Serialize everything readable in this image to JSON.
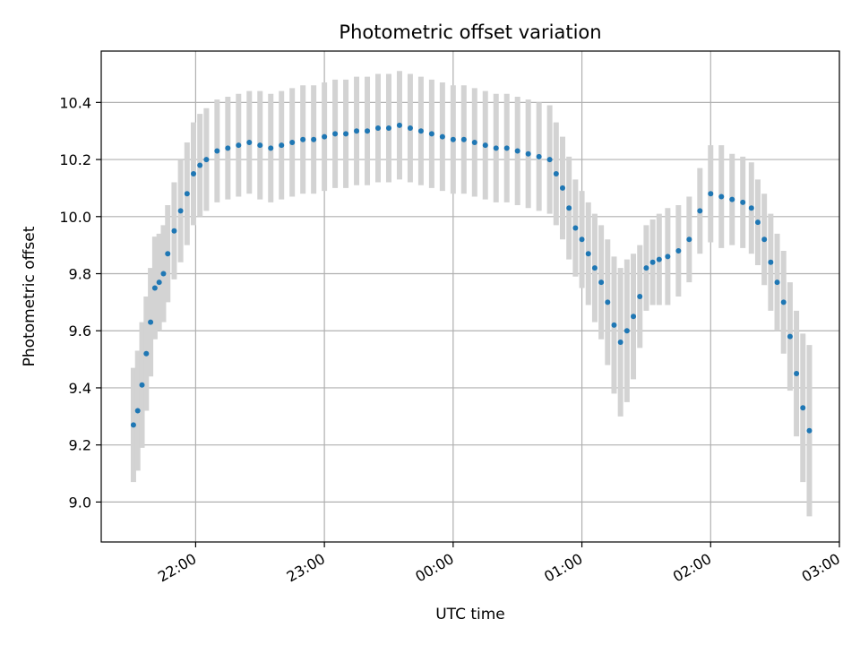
{
  "chart_data": {
    "type": "scatter",
    "title": "Photometric offset variation",
    "xlabel": "UTC time",
    "ylabel": "Photometric offset",
    "x_ticks": [
      "22:00",
      "23:00",
      "00:00",
      "01:00",
      "02:00",
      "03:00"
    ],
    "x_range": [
      "21:16",
      "03:00"
    ],
    "y_ticks": [
      "9.0",
      "9.2",
      "9.4",
      "9.6",
      "9.8",
      "10.0",
      "10.2",
      "10.4"
    ],
    "ylim": [
      8.86,
      10.58
    ],
    "grid": true,
    "colors": {
      "points": "#1f77b4",
      "error_bars": "#d3d3d3",
      "grid": "#b0b0b0"
    },
    "series": [
      {
        "x": [
          "21:31",
          "21:33",
          "21:35",
          "21:37",
          "21:39",
          "21:41",
          "21:43",
          "21:45",
          "21:47",
          "21:50",
          "21:53",
          "21:56",
          "21:59",
          "22:02",
          "22:05",
          "22:10",
          "22:15",
          "22:20",
          "22:25",
          "22:30",
          "22:35",
          "22:40",
          "22:45",
          "22:50",
          "22:55",
          "23:00",
          "23:05",
          "23:10",
          "23:15",
          "23:20",
          "23:25",
          "23:30",
          "23:35",
          "23:40",
          "23:45",
          "23:50",
          "23:55",
          "00:00",
          "00:05",
          "00:10",
          "00:15",
          "00:20",
          "00:25",
          "00:30",
          "00:35",
          "00:40",
          "00:45",
          "00:48",
          "00:51",
          "00:54",
          "00:57",
          "01:00",
          "01:03",
          "01:06",
          "01:09",
          "01:12",
          "01:15",
          "01:18",
          "01:21",
          "01:24",
          "01:27",
          "01:30",
          "01:33",
          "01:36",
          "01:40",
          "01:45",
          "01:50",
          "01:55",
          "02:00",
          "02:05",
          "02:10",
          "02:15",
          "02:19",
          "02:22",
          "02:25",
          "02:28",
          "02:31",
          "02:34",
          "02:37",
          "02:40",
          "02:43",
          "02:46"
        ],
        "y": [
          9.27,
          9.32,
          9.41,
          9.52,
          9.63,
          9.75,
          9.77,
          9.8,
          9.87,
          9.95,
          10.02,
          10.08,
          10.15,
          10.18,
          10.2,
          10.23,
          10.24,
          10.25,
          10.26,
          10.25,
          10.24,
          10.25,
          10.26,
          10.27,
          10.27,
          10.28,
          10.29,
          10.29,
          10.3,
          10.3,
          10.31,
          10.31,
          10.32,
          10.31,
          10.3,
          10.29,
          10.28,
          10.27,
          10.27,
          10.26,
          10.25,
          10.24,
          10.24,
          10.23,
          10.22,
          10.21,
          10.2,
          10.15,
          10.1,
          10.03,
          9.96,
          9.92,
          9.87,
          9.82,
          9.77,
          9.7,
          9.62,
          9.56,
          9.6,
          9.65,
          9.72,
          9.82,
          9.84,
          9.85,
          9.86,
          9.88,
          9.92,
          10.02,
          10.08,
          10.07,
          10.06,
          10.05,
          10.03,
          9.98,
          9.92,
          9.84,
          9.77,
          9.7,
          9.58,
          9.45,
          9.33,
          9.25
        ],
        "yerr": [
          0.2,
          0.21,
          0.22,
          0.2,
          0.19,
          0.18,
          0.17,
          0.17,
          0.17,
          0.17,
          0.18,
          0.18,
          0.18,
          0.18,
          0.18,
          0.18,
          0.18,
          0.18,
          0.18,
          0.19,
          0.19,
          0.19,
          0.19,
          0.19,
          0.19,
          0.19,
          0.19,
          0.19,
          0.19,
          0.19,
          0.19,
          0.19,
          0.19,
          0.19,
          0.19,
          0.19,
          0.19,
          0.19,
          0.19,
          0.19,
          0.19,
          0.19,
          0.19,
          0.19,
          0.19,
          0.19,
          0.19,
          0.18,
          0.18,
          0.18,
          0.17,
          0.17,
          0.18,
          0.19,
          0.2,
          0.22,
          0.24,
          0.26,
          0.25,
          0.22,
          0.18,
          0.15,
          0.15,
          0.16,
          0.17,
          0.16,
          0.15,
          0.15,
          0.17,
          0.18,
          0.16,
          0.16,
          0.16,
          0.15,
          0.16,
          0.17,
          0.17,
          0.18,
          0.19,
          0.22,
          0.26,
          0.3
        ]
      }
    ]
  }
}
